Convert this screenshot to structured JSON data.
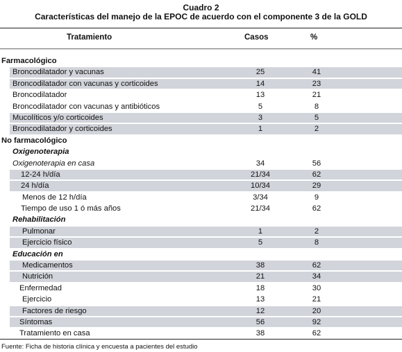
{
  "title": {
    "line1": "Cuadro 2",
    "line2": "Características del manejo de la EPOC de acuerdo con el componente 3 de la GOLD"
  },
  "header": {
    "col1": "Tratamiento",
    "col2": "Casos",
    "col3": "%"
  },
  "rows": [
    {
      "label": "Farmacológico",
      "casos": "",
      "pct": "",
      "level": 0,
      "style": "sec",
      "shade": false
    },
    {
      "label": "Broncodilatador y vacunas",
      "casos": "25",
      "pct": "41",
      "level": 1,
      "style": "",
      "shade": true
    },
    {
      "label": "Broncodilatador con vacunas y corticoides",
      "casos": "14",
      "pct": "23",
      "level": 1,
      "style": "",
      "shade": true
    },
    {
      "label": "Broncodilatador",
      "casos": "13",
      "pct": "21",
      "level": 1,
      "style": "",
      "shade": false
    },
    {
      "label": "Broncodilatador con vacunas y antibióticos",
      "casos": "5",
      "pct": "8",
      "level": 1,
      "style": "",
      "shade": false
    },
    {
      "label": "Mucolíticos y/o corticoides",
      "casos": "3",
      "pct": "5",
      "level": 1,
      "style": "",
      "shade": true
    },
    {
      "label": "Broncodilatador y corticoides",
      "casos": "1",
      "pct": "2",
      "level": 1,
      "style": "",
      "shade": true
    },
    {
      "label": "No farmacológico",
      "casos": "",
      "pct": "",
      "level": 0,
      "style": "sec",
      "shade": false
    },
    {
      "label": "Oxigenoterapia",
      "casos": "",
      "pct": "",
      "level": 1,
      "style": "boldital",
      "shade": false
    },
    {
      "label": "Oxigenoterapia en casa",
      "casos": "34",
      "pct": "56",
      "level": 1,
      "style": "ital",
      "shade": false
    },
    {
      "label": "12-24 h/día",
      "casos": "21/34",
      "pct": "62",
      "level": 2,
      "style": "",
      "shade": true
    },
    {
      "label": "24 h/día",
      "casos": "10/34",
      "pct": "29",
      "level": 2,
      "style": "",
      "shade": true
    },
    {
      "label": "Menos de 12 h/día",
      "casos": "3/34",
      "pct": "9",
      "level": 3,
      "style": "",
      "shade": false
    },
    {
      "label": "Tiempo de uso 1 ó más años",
      "casos": "21/34",
      "pct": "62",
      "level": 2,
      "style": "",
      "shade": false
    },
    {
      "label": "Rehabilitación",
      "casos": "",
      "pct": "",
      "level": 1,
      "style": "boldital",
      "shade": false
    },
    {
      "label": "Pulmonar",
      "casos": "1",
      "pct": "2",
      "level": 3,
      "style": "",
      "shade": true
    },
    {
      "label": "Ejercicio físico",
      "casos": "5",
      "pct": "8",
      "level": 3,
      "style": "",
      "shade": true
    },
    {
      "label": "Educación en",
      "casos": "",
      "pct": "",
      "level": 1,
      "style": "boldital",
      "shade": false
    },
    {
      "label": "Medicamentos",
      "casos": "38",
      "pct": "62",
      "level": 3,
      "style": "",
      "shade": true
    },
    {
      "label": "Nutrición",
      "casos": "21",
      "pct": "34",
      "level": 3,
      "style": "",
      "shade": true
    },
    {
      "label": "Enfermedad",
      "casos": "18",
      "pct": "30",
      "level": 4,
      "style": "",
      "shade": false
    },
    {
      "label": "Ejercicio",
      "casos": "13",
      "pct": "21",
      "level": 3,
      "style": "",
      "shade": false
    },
    {
      "label": "Factores de riesgo",
      "casos": "12",
      "pct": "20",
      "level": 3,
      "style": "",
      "shade": true
    },
    {
      "label": "Síntomas",
      "casos": "56",
      "pct": "92",
      "level": 4,
      "style": "",
      "shade": true
    },
    {
      "label": "Tratamiento en casa",
      "casos": "38",
      "pct": "62",
      "level": 4,
      "style": "",
      "shade": false
    }
  ],
  "footnote": "Fuente: Ficha de historia clínica y encuesta a pacientes del estudio",
  "colors": {
    "shade": "#d1d4da"
  }
}
